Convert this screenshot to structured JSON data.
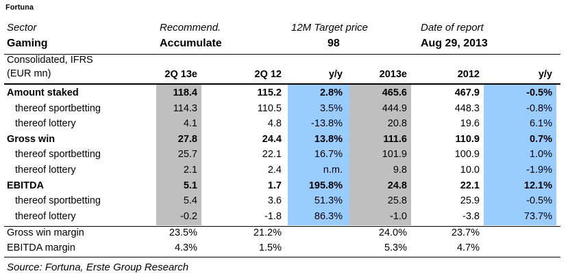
{
  "company": "Fortuna",
  "meta": {
    "sector_label": "Sector",
    "recommend_label": "Recommend.",
    "target_label": "12M Target price",
    "date_label": "Date of report",
    "sector_value": "Gaming",
    "recommend_value": "Accumulate",
    "target_value": "98",
    "date_value": "Aug 29, 2013"
  },
  "table": {
    "header_line1": "Consolidated, IFRS",
    "header_line2": "(EUR mn)",
    "columns": [
      "2Q 13e",
      "2Q 12",
      "y/y",
      "2013e",
      "2012",
      "y/y"
    ],
    "rows": [
      {
        "label": "Amount staked",
        "bold": true,
        "indent": false,
        "values": [
          "118.4",
          "115.2",
          "2.8%",
          "465.6",
          "467.9",
          "-0.5%"
        ]
      },
      {
        "label": "thereof sportbetting",
        "bold": false,
        "indent": true,
        "values": [
          "114.3",
          "110.5",
          "3.5%",
          "444.9",
          "448.3",
          "-0.8%"
        ]
      },
      {
        "label": "thereof lottery",
        "bold": false,
        "indent": true,
        "values": [
          "4.1",
          "4.8",
          "-13.8%",
          "20.8",
          "19.6",
          "6.1%"
        ]
      },
      {
        "label": "Gross win",
        "bold": true,
        "indent": false,
        "values": [
          "27.8",
          "24.4",
          "13.8%",
          "111.6",
          "110.9",
          "0.7%"
        ]
      },
      {
        "label": "thereof sportbetting",
        "bold": false,
        "indent": true,
        "values": [
          "25.7",
          "22.1",
          "16.7%",
          "101.9",
          "100.9",
          "1.0%"
        ]
      },
      {
        "label": "thereof lottery",
        "bold": false,
        "indent": true,
        "values": [
          "2.1",
          "2.4",
          "n.m.",
          "9.8",
          "10.0",
          "-1.9%"
        ]
      },
      {
        "label": "EBITDA",
        "bold": true,
        "indent": false,
        "values": [
          "5.1",
          "1.7",
          "195.8%",
          "24.8",
          "22.1",
          "12.1%"
        ]
      },
      {
        "label": "thereof sportbetting",
        "bold": false,
        "indent": true,
        "values": [
          "5.4",
          "3.6",
          "51.3%",
          "25.8",
          "25.9",
          "-0.5%"
        ]
      },
      {
        "label": "thereof lottery",
        "bold": false,
        "indent": true,
        "values": [
          "-0.2",
          "-1.8",
          "86.3%",
          "-1.0",
          "-3.8",
          "73.7%"
        ]
      }
    ],
    "margin_rows": [
      {
        "label": "Gross win margin",
        "values": [
          "23.5%",
          "21.2%",
          "",
          "24.0%",
          "23.7%",
          ""
        ]
      },
      {
        "label": "EBITDA margin",
        "values": [
          "4.3%",
          "1.5%",
          "",
          "5.3%",
          "4.7%",
          ""
        ]
      }
    ]
  },
  "source": "Source: Fortuna, Erste Group Research",
  "colors": {
    "grey_shade": "#bfbfbf",
    "blue_shade": "#99ccff"
  }
}
